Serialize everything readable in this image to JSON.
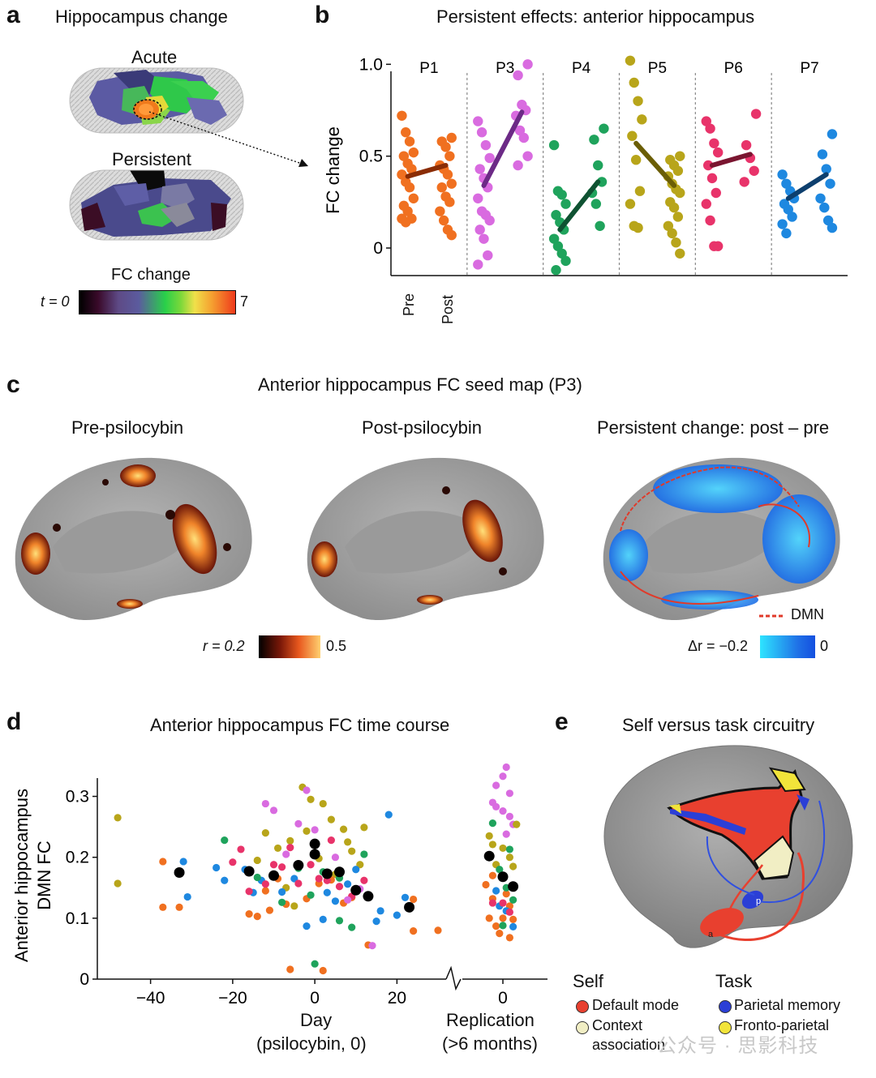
{
  "panel_a": {
    "letter": "a",
    "title": "Hippocampus change",
    "acute_label": "Acute",
    "persistent_label": "Persistent",
    "cbar_title": "FC change",
    "cbar_min": "t = 0",
    "cbar_max": "7"
  },
  "panel_b": {
    "letter": "b",
    "title": "Persistent effects: anterior hippocampus",
    "xtick_pre": "Pre",
    "xtick_post": "Post"
  },
  "panel_c": {
    "letter": "c",
    "title": "Anterior hippocampus FC seed map (P3)",
    "sub_pre": "Pre-psilocybin",
    "sub_post": "Post-psilocybin",
    "sub_change": "Persistent change: post – pre",
    "dmn_label": "DMN",
    "r_min": "r = 0.2",
    "r_max": "0.5",
    "dr_min": "Δr = −0.2",
    "dr_max": "0"
  },
  "panel_d": {
    "letter": "d",
    "title": "Anterior hippocampus FC time course",
    "xlabel1": "Day",
    "xlabel2": "(psilocybin, 0)",
    "rep1": "Replication",
    "rep2": "(>6 months)"
  },
  "panel_e": {
    "letter": "e",
    "title": "Self versus task circuitry",
    "self_title": "Self",
    "task_title": "Task",
    "legend": [
      {
        "label": "Default mode",
        "color": "#e8402f"
      },
      {
        "label": "Context",
        "color": "#f1eec4"
      },
      {
        "label": "Parietal memory",
        "color": "#2b3fd6"
      },
      {
        "label": "Fronto-parietal",
        "color": "#f2e43a"
      }
    ],
    "context_line2": "association",
    "brain_label_p": "p",
    "brain_label_a": "a"
  },
  "watermark": "公众号 · 思影科技",
  "chart_data": [
    {
      "type": "scatter",
      "title": "Persistent effects: anterior hippocampus",
      "ylabel": "FC change",
      "ylim": [
        -0.15,
        1.05
      ],
      "yticks": [
        "0",
        "0.5",
        "1.0"
      ],
      "categories": [
        "Pre",
        "Post"
      ],
      "series": [
        {
          "name": "P1",
          "color": "#f07020",
          "line_color": "#8a2c05",
          "pre": [
            0.72,
            0.63,
            0.58,
            0.52,
            0.5,
            0.46,
            0.43,
            0.4,
            0.36,
            0.33,
            0.27,
            0.23,
            0.2,
            0.16,
            0.16,
            0.14
          ],
          "post": [
            0.6,
            0.58,
            0.55,
            0.5,
            0.45,
            0.43,
            0.4,
            0.35,
            0.33,
            0.28,
            0.25,
            0.2,
            0.15,
            0.1,
            0.07
          ],
          "mean_pre": 0.39,
          "mean_post": 0.45
        },
        {
          "name": "P3",
          "color": "#d96be0",
          "line_color": "#6c2a86",
          "pre": [
            0.69,
            0.63,
            0.56,
            0.49,
            0.43,
            0.38,
            0.33,
            0.27,
            0.2,
            0.18,
            0.15,
            0.1,
            0.05,
            -0.04,
            -0.09
          ],
          "post": [
            1.0,
            0.94,
            0.78,
            0.75,
            0.72,
            0.64,
            0.6,
            0.5,
            0.45
          ],
          "mean_pre": 0.34,
          "mean_post": 0.74
        },
        {
          "name": "P4",
          "color": "#1fa35c",
          "line_color": "#0f5232",
          "pre": [
            0.56,
            0.31,
            0.29,
            0.24,
            0.18,
            0.14,
            0.1,
            0.05,
            0.01,
            -0.03,
            -0.07,
            -0.12
          ],
          "post": [
            0.65,
            0.59,
            0.45,
            0.36,
            0.3,
            0.24,
            0.12
          ],
          "mean_pre": 0.1,
          "mean_post": 0.36
        },
        {
          "name": "P5",
          "color": "#b8a51a",
          "line_color": "#6b5e05",
          "pre": [
            1.02,
            0.9,
            0.8,
            0.7,
            0.61,
            0.48,
            0.31,
            0.24,
            0.12,
            0.11
          ],
          "post": [
            0.5,
            0.48,
            0.45,
            0.42,
            0.39,
            0.35,
            0.32,
            0.3,
            0.25,
            0.22,
            0.17,
            0.12,
            0.08,
            0.03,
            -0.03
          ],
          "mean_pre": 0.57,
          "mean_post": 0.34
        },
        {
          "name": "P6",
          "color": "#e8336a",
          "line_color": "#7a1530",
          "pre": [
            0.69,
            0.65,
            0.57,
            0.52,
            0.45,
            0.38,
            0.3,
            0.24,
            0.15,
            0.01,
            0.01
          ],
          "post": [
            0.73,
            0.56,
            0.49,
            0.42,
            0.36
          ],
          "mean_pre": 0.45,
          "mean_post": 0.51
        },
        {
          "name": "P7",
          "color": "#1e88e0",
          "line_color": "#0d3f6e",
          "pre": [
            0.4,
            0.35,
            0.31,
            0.27,
            0.24,
            0.21,
            0.17,
            0.13,
            0.08
          ],
          "post": [
            0.62,
            0.51,
            0.43,
            0.35,
            0.27,
            0.22,
            0.15,
            0.11
          ],
          "mean_pre": 0.27,
          "mean_post": 0.4
        }
      ]
    },
    {
      "type": "scatter",
      "title": "Anterior hippocampus FC time course",
      "ylabel": "Anterior hippocampus DMN FC",
      "xlabel": "Day (psilocybin, 0)",
      "xlim": [
        -50,
        30
      ],
      "ylim": [
        0,
        0.33
      ],
      "xticks": [
        "−40",
        "−20",
        "0",
        "20"
      ],
      "yticks": [
        "0",
        "0.1",
        "0.2",
        "0.3"
      ],
      "replication_xtick": "0",
      "means": [
        [
          -33,
          0.175
        ],
        [
          -16,
          0.177
        ],
        [
          -10,
          0.17
        ],
        [
          -4,
          0.187
        ],
        [
          0,
          0.222
        ],
        [
          0,
          0.205
        ],
        [
          3,
          0.173
        ],
        [
          6,
          0.176
        ],
        [
          10,
          0.146
        ],
        [
          13,
          0.136
        ],
        [
          23,
          0.118
        ]
      ],
      "replication_means": [
        [
          -4,
          0.202
        ],
        [
          0,
          0.168
        ],
        [
          3,
          0.152
        ]
      ],
      "points": [
        {
          "c": "#b8a51a",
          "d": [
            [
              -48,
              0.265
            ],
            [
              -48,
              0.157
            ],
            [
              -6,
              0.227
            ],
            [
              -3,
              0.315
            ],
            [
              -1,
              0.295
            ],
            [
              2,
              0.288
            ],
            [
              4,
              0.262
            ],
            [
              7,
              0.246
            ],
            [
              9,
              0.21
            ],
            [
              12,
              0.249
            ],
            [
              -12,
              0.24
            ],
            [
              -9,
              0.215
            ],
            [
              -14,
              0.195
            ],
            [
              5,
              0.172
            ],
            [
              1,
              0.198
            ],
            [
              -2,
              0.243
            ],
            [
              8,
              0.225
            ],
            [
              -7,
              0.15
            ],
            [
              11,
              0.188
            ],
            [
              -5,
              0.12
            ]
          ]
        },
        {
          "c": "#f07020",
          "d": [
            [
              -37,
              0.193
            ],
            [
              -37,
              0.118
            ],
            [
              -33,
              0.118
            ],
            [
              -16,
              0.107
            ],
            [
              -14,
              0.103
            ],
            [
              -11,
              0.113
            ],
            [
              -7,
              0.123
            ],
            [
              -2,
              0.132
            ],
            [
              -6,
              0.016
            ],
            [
              2,
              0.014
            ],
            [
              9,
              0.134
            ],
            [
              13,
              0.056
            ],
            [
              24,
              0.131
            ],
            [
              30,
              0.08
            ],
            [
              24,
              0.079
            ],
            [
              -9,
              0.165
            ],
            [
              -12,
              0.145
            ],
            [
              4,
              0.163
            ],
            [
              7,
              0.125
            ],
            [
              1,
              0.157
            ]
          ]
        },
        {
          "c": "#1e88e0",
          "d": [
            [
              -32,
              0.193
            ],
            [
              -31,
              0.135
            ],
            [
              -24,
              0.183
            ],
            [
              -22,
              0.162
            ],
            [
              -17,
              0.18
            ],
            [
              -15,
              0.142
            ],
            [
              -8,
              0.143
            ],
            [
              -2,
              0.087
            ],
            [
              2,
              0.098
            ],
            [
              3,
              0.142
            ],
            [
              8,
              0.156
            ],
            [
              15,
              0.095
            ],
            [
              16,
              0.112
            ],
            [
              18,
              0.27
            ],
            [
              20,
              0.105
            ],
            [
              22,
              0.134
            ],
            [
              -13,
              0.162
            ],
            [
              10,
              0.18
            ],
            [
              -5,
              0.165
            ],
            [
              5,
              0.128
            ]
          ]
        },
        {
          "c": "#e8336a",
          "d": [
            [
              -20,
              0.192
            ],
            [
              -18,
              0.213
            ],
            [
              -16,
              0.144
            ],
            [
              -12,
              0.156
            ],
            [
              -10,
              0.188
            ],
            [
              -8,
              0.184
            ],
            [
              -4,
              0.157
            ],
            [
              -1,
              0.188
            ],
            [
              1,
              0.165
            ],
            [
              3,
              0.162
            ],
            [
              6,
              0.152
            ],
            [
              9,
              0.136
            ],
            [
              12,
              0.162
            ],
            [
              -6,
              0.216
            ],
            [
              4,
              0.228
            ]
          ]
        },
        {
          "c": "#d96be0",
          "d": [
            [
              -12,
              0.288
            ],
            [
              -10,
              0.277
            ],
            [
              -2,
              0.31
            ],
            [
              0,
              0.245
            ],
            [
              -4,
              0.255
            ],
            [
              5,
              0.2
            ],
            [
              8,
              0.13
            ],
            [
              14,
              0.055
            ],
            [
              11,
              0.148
            ],
            [
              -7,
              0.205
            ]
          ]
        },
        {
          "c": "#1fa35c",
          "d": [
            [
              -22,
              0.228
            ],
            [
              -14,
              0.167
            ],
            [
              -8,
              0.126
            ],
            [
              -4,
              0.182
            ],
            [
              0,
              0.025
            ],
            [
              2,
              0.176
            ],
            [
              6,
              0.166
            ],
            [
              9,
              0.085
            ],
            [
              12,
              0.205
            ],
            [
              6,
              0.096
            ],
            [
              -1,
              0.138
            ]
          ]
        }
      ],
      "replication_points": [
        {
          "c": "#d96be0",
          "d": [
            [
              1,
              0.348
            ],
            [
              0,
              0.333
            ],
            [
              -2,
              0.318
            ],
            [
              2,
              0.305
            ],
            [
              -3,
              0.29
            ],
            [
              -2,
              0.283
            ],
            [
              0,
              0.276
            ],
            [
              2,
              0.267
            ],
            [
              3,
              0.254
            ],
            [
              1,
              0.238
            ]
          ]
        },
        {
          "c": "#b8a51a",
          "d": [
            [
              -4,
              0.235
            ],
            [
              -3,
              0.221
            ],
            [
              0,
              0.215
            ],
            [
              2,
              0.2
            ],
            [
              4,
              0.254
            ],
            [
              -2,
              0.188
            ],
            [
              3,
              0.185
            ]
          ]
        },
        {
          "c": "#f07020",
          "d": [
            [
              -3,
              0.17
            ],
            [
              -5,
              0.155
            ],
            [
              -3,
              0.132
            ],
            [
              -4,
              0.1
            ],
            [
              -2,
              0.087
            ],
            [
              1,
              0.14
            ],
            [
              2,
              0.12
            ],
            [
              0,
              0.1
            ],
            [
              3,
              0.098
            ],
            [
              2,
              0.068
            ],
            [
              -1,
              0.075
            ]
          ]
        },
        {
          "c": "#1fa35c",
          "d": [
            [
              -3,
              0.256
            ],
            [
              2,
              0.213
            ],
            [
              -1,
              0.18
            ],
            [
              1,
              0.15
            ],
            [
              3,
              0.13
            ],
            [
              0,
              0.088
            ]
          ]
        },
        {
          "c": "#1e88e0",
          "d": [
            [
              -2,
              0.145
            ],
            [
              1,
              0.112
            ],
            [
              3,
              0.086
            ],
            [
              -1,
              0.12
            ]
          ]
        },
        {
          "c": "#e8336a",
          "d": [
            [
              0,
              0.125
            ],
            [
              2,
              0.11
            ],
            [
              -3,
              0.125
            ]
          ]
        }
      ]
    }
  ]
}
